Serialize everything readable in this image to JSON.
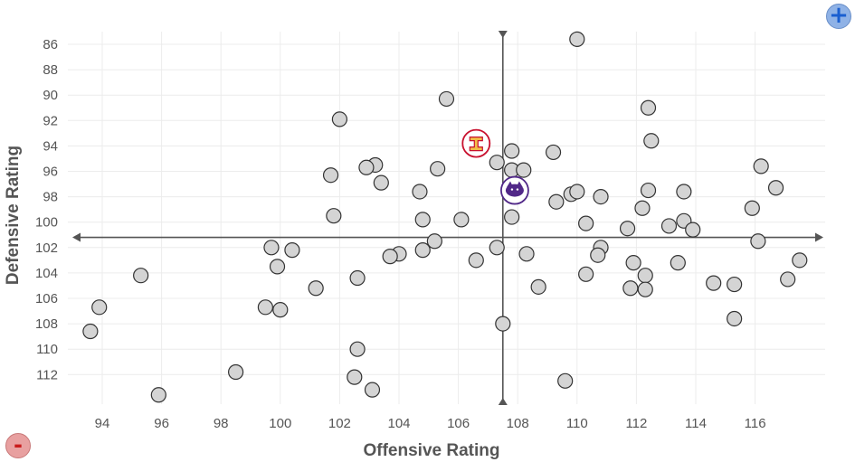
{
  "chart_data": {
    "type": "scatter",
    "xlabel": "Offensive Rating",
    "ylabel": "Defensive Rating",
    "xlim": [
      92.5,
      118
    ],
    "ylim": [
      86,
      114
    ],
    "y_inverted": true,
    "grid": true,
    "x_ticks": [
      "94",
      "96",
      "98",
      "100",
      "102",
      "104",
      "106",
      "108",
      "110",
      "112",
      "114",
      "116"
    ],
    "y_ticks": [
      "86",
      "88",
      "90",
      "92",
      "94",
      "96",
      "98",
      "100",
      "102",
      "104",
      "106",
      "108",
      "110",
      "112"
    ],
    "reference_lines": {
      "x": 107.5,
      "y": 101.2
    },
    "highlight_points": [
      {
        "x": 106.6,
        "y": 93.8,
        "logo": "iowa-state-logo",
        "color": "#c8102e"
      },
      {
        "x": 107.9,
        "y": 97.5,
        "logo": "kansas-state-logo",
        "color": "#512888"
      }
    ],
    "points": [
      [
        110.0,
        85.6
      ],
      [
        105.6,
        90.3
      ],
      [
        112.4,
        91.0
      ],
      [
        102.0,
        91.9
      ],
      [
        112.5,
        93.6
      ],
      [
        109.2,
        94.5
      ],
      [
        107.8,
        94.4
      ],
      [
        107.3,
        95.3
      ],
      [
        103.2,
        95.5
      ],
      [
        102.9,
        95.7
      ],
      [
        105.3,
        95.8
      ],
      [
        107.8,
        95.9
      ],
      [
        108.2,
        95.9
      ],
      [
        101.7,
        96.3
      ],
      [
        116.2,
        95.6
      ],
      [
        103.4,
        96.9
      ],
      [
        116.7,
        97.3
      ],
      [
        112.4,
        97.5
      ],
      [
        113.6,
        97.6
      ],
      [
        104.7,
        97.6
      ],
      [
        109.8,
        97.8
      ],
      [
        110.0,
        97.6
      ],
      [
        110.8,
        98.0
      ],
      [
        109.3,
        98.4
      ],
      [
        112.2,
        98.9
      ],
      [
        115.9,
        98.9
      ],
      [
        101.8,
        99.5
      ],
      [
        107.8,
        99.6
      ],
      [
        104.8,
        99.8
      ],
      [
        106.1,
        99.8
      ],
      [
        110.3,
        100.1
      ],
      [
        113.1,
        100.3
      ],
      [
        113.6,
        99.9
      ],
      [
        111.7,
        100.5
      ],
      [
        113.9,
        100.6
      ],
      [
        105.2,
        101.5
      ],
      [
        116.1,
        101.5
      ],
      [
        99.7,
        102.0
      ],
      [
        107.3,
        102.0
      ],
      [
        110.8,
        102.0
      ],
      [
        100.4,
        102.2
      ],
      [
        104.8,
        102.2
      ],
      [
        104.0,
        102.5
      ],
      [
        103.7,
        102.7
      ],
      [
        110.7,
        102.6
      ],
      [
        108.3,
        102.5
      ],
      [
        106.6,
        103.0
      ],
      [
        117.5,
        103.0
      ],
      [
        111.9,
        103.2
      ],
      [
        113.4,
        103.2
      ],
      [
        99.9,
        103.5
      ],
      [
        95.3,
        104.2
      ],
      [
        110.3,
        104.1
      ],
      [
        112.3,
        104.2
      ],
      [
        102.6,
        104.4
      ],
      [
        117.1,
        104.5
      ],
      [
        108.7,
        105.1
      ],
      [
        114.6,
        104.8
      ],
      [
        115.3,
        104.9
      ],
      [
        101.2,
        105.2
      ],
      [
        111.8,
        105.2
      ],
      [
        112.3,
        105.3
      ],
      [
        93.9,
        106.7
      ],
      [
        99.5,
        106.7
      ],
      [
        100.0,
        106.9
      ],
      [
        115.3,
        107.6
      ],
      [
        107.5,
        108.0
      ],
      [
        93.6,
        108.6
      ],
      [
        102.6,
        110.0
      ],
      [
        98.5,
        111.8
      ],
      [
        102.5,
        112.2
      ],
      [
        109.6,
        112.5
      ],
      [
        103.1,
        113.2
      ],
      [
        95.9,
        113.6
      ]
    ]
  }
}
